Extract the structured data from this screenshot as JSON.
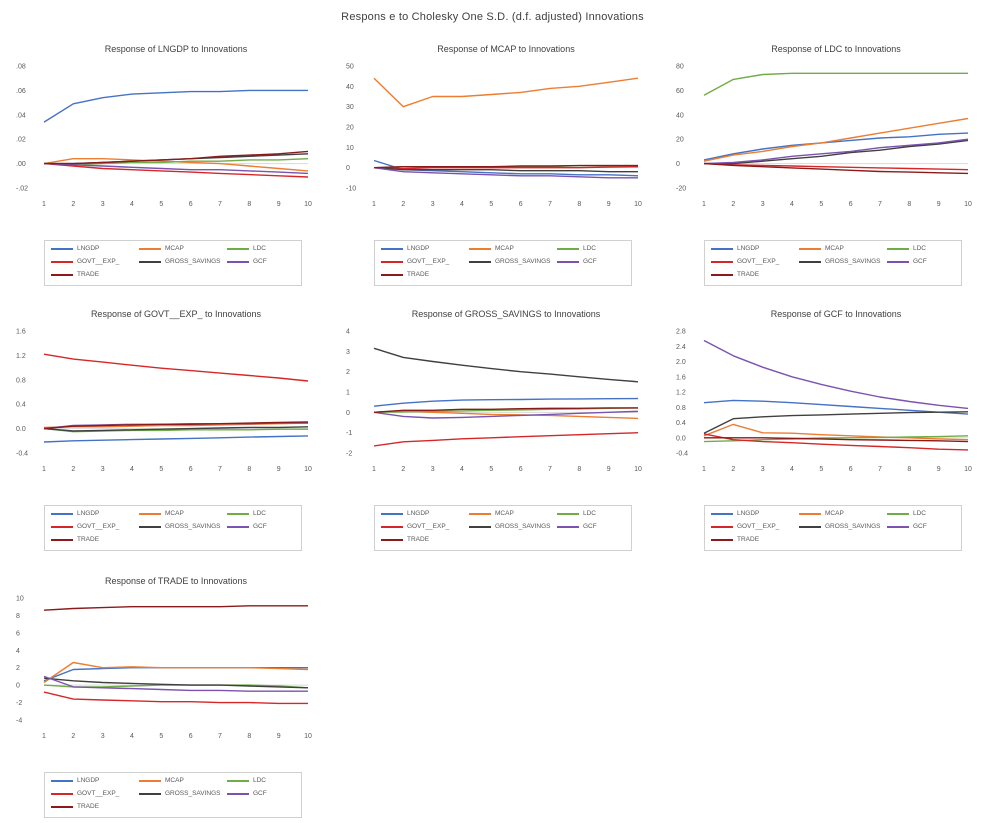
{
  "title": "Respons e to Cholesky One S.D. (d.f. adjusted) Innovations",
  "colors": {
    "LNGDP": "#4472c4",
    "MCAP": "#ed7d31",
    "LDC": "#70ad47",
    "GOVT__EXP_": "#d62728",
    "GROSS_SAVINGS": "#404040",
    "GCF": "#7b52ae",
    "TRADE": "#8b1a1a"
  },
  "legend": [
    "LNGDP",
    "MCAP",
    "LDC",
    "GOVT__EXP_",
    "GROSS_SAVINGS",
    "GCF",
    "TRADE"
  ],
  "chart_data": [
    {
      "type": "line",
      "title": "Response of LNGDP to Innovations",
      "x": [
        1,
        2,
        3,
        4,
        5,
        6,
        7,
        8,
        9,
        10
      ],
      "yticks": [
        ".08",
        ".06",
        ".04",
        ".02",
        ".00",
        "-.02"
      ],
      "ylim": [
        -0.02,
        0.08
      ],
      "series": [
        {
          "name": "LNGDP",
          "values": [
            0.034,
            0.049,
            0.054,
            0.057,
            0.058,
            0.059,
            0.059,
            0.06,
            0.06,
            0.06
          ]
        },
        {
          "name": "MCAP",
          "values": [
            0.0,
            0.004,
            0.004,
            0.003,
            0.002,
            0.001,
            0.0,
            -0.002,
            -0.004,
            -0.006
          ]
        },
        {
          "name": "LDC",
          "values": [
            0.0,
            -0.001,
            0.0,
            0.001,
            0.001,
            0.002,
            0.002,
            0.003,
            0.003,
            0.004
          ]
        },
        {
          "name": "GOVT__EXP_",
          "values": [
            0.0,
            -0.002,
            -0.004,
            -0.005,
            -0.006,
            -0.007,
            -0.008,
            -0.009,
            -0.01,
            -0.011
          ]
        },
        {
          "name": "GROSS_SAVINGS",
          "values": [
            0.0,
            0.0,
            0.001,
            0.002,
            0.003,
            0.004,
            0.005,
            0.006,
            0.007,
            0.008
          ]
        },
        {
          "name": "GCF",
          "values": [
            0.0,
            -0.001,
            -0.002,
            -0.003,
            -0.004,
            -0.005,
            -0.005,
            -0.006,
            -0.007,
            -0.008
          ]
        },
        {
          "name": "TRADE",
          "values": [
            0.0,
            0.0,
            0.001,
            0.002,
            0.003,
            0.004,
            0.006,
            0.007,
            0.008,
            0.01
          ]
        }
      ]
    },
    {
      "type": "line",
      "title": "Response of MCAP to Innovations",
      "x": [
        1,
        2,
        3,
        4,
        5,
        6,
        7,
        8,
        9,
        10
      ],
      "yticks": [
        "50",
        "40",
        "30",
        "20",
        "10",
        "0",
        "-10"
      ],
      "ylim": [
        -10,
        50
      ],
      "series": [
        {
          "name": "LNGDP",
          "values": [
            3.5,
            -1.0,
            -1.5,
            -2.0,
            -2.5,
            -3.0,
            -3.0,
            -3.5,
            -3.5,
            -4.0
          ]
        },
        {
          "name": "MCAP",
          "values": [
            44,
            30,
            35,
            35,
            36,
            37,
            39,
            40,
            42,
            44
          ]
        },
        {
          "name": "LDC",
          "values": [
            0,
            0.5,
            0.5,
            0.5,
            0.5,
            0.5,
            0.5,
            1.0,
            1.0,
            1.0
          ]
        },
        {
          "name": "GOVT__EXP_",
          "values": [
            0,
            -0.5,
            0,
            0,
            0,
            0,
            0,
            0,
            0.3,
            0.5
          ]
        },
        {
          "name": "GROSS_SAVINGS",
          "values": [
            0,
            -1.0,
            -1.0,
            -1.0,
            -1.0,
            -1.5,
            -1.5,
            -1.5,
            -2.0,
            -2.0
          ]
        },
        {
          "name": "GCF",
          "values": [
            0,
            -2.0,
            -2.5,
            -3.0,
            -3.5,
            -4.0,
            -4.0,
            -4.5,
            -5.0,
            -5.0
          ]
        },
        {
          "name": "TRADE",
          "values": [
            0,
            0.5,
            0.5,
            0.5,
            0.5,
            0.8,
            0.8,
            1.0,
            1.0,
            1.0
          ]
        }
      ]
    },
    {
      "type": "line",
      "title": "Response of LDC to Innovations",
      "x": [
        1,
        2,
        3,
        4,
        5,
        6,
        7,
        8,
        9,
        10
      ],
      "yticks": [
        "80",
        "60",
        "40",
        "20",
        "0",
        "-20"
      ],
      "ylim": [
        -20,
        80
      ],
      "series": [
        {
          "name": "LNGDP",
          "values": [
            3,
            8,
            12,
            15,
            17,
            19,
            21,
            22,
            24,
            25
          ]
        },
        {
          "name": "MCAP",
          "values": [
            2,
            7,
            10,
            14,
            17,
            21,
            25,
            29,
            33,
            37
          ]
        },
        {
          "name": "LDC",
          "values": [
            56,
            69,
            73,
            74,
            74,
            74,
            74,
            74,
            74,
            74
          ]
        },
        {
          "name": "GOVT__EXP_",
          "values": [
            0,
            -1,
            -1.5,
            -2,
            -2.5,
            -3,
            -3.5,
            -4,
            -4.5,
            -5
          ]
        },
        {
          "name": "GROSS_SAVINGS",
          "values": [
            0,
            0,
            2,
            4,
            6,
            9,
            11,
            14,
            16,
            19
          ]
        },
        {
          "name": "GCF",
          "values": [
            0,
            1,
            3,
            6,
            8,
            10,
            13,
            15,
            17,
            20
          ]
        },
        {
          "name": "TRADE",
          "values": [
            0,
            -1.5,
            -2.5,
            -3.5,
            -4.5,
            -5.5,
            -6.5,
            -7,
            -7.5,
            -8
          ]
        }
      ]
    },
    {
      "type": "line",
      "title": "Response of GOVT__EXP_ to Innovations",
      "x": [
        1,
        2,
        3,
        4,
        5,
        6,
        7,
        8,
        9,
        10
      ],
      "yticks": [
        "1.6",
        "1.2",
        "0.8",
        "0.4",
        "0.0",
        "-0.4"
      ],
      "ylim": [
        -0.4,
        1.6
      ],
      "series": [
        {
          "name": "LNGDP",
          "values": [
            -0.22,
            -0.2,
            -0.19,
            -0.18,
            -0.17,
            -0.16,
            -0.15,
            -0.14,
            -0.13,
            -0.12
          ]
        },
        {
          "name": "MCAP",
          "values": [
            0.02,
            0.03,
            0.03,
            0.04,
            0.05,
            0.05,
            0.06,
            0.07,
            0.08,
            0.09
          ]
        },
        {
          "name": "LDC",
          "values": [
            0,
            -0.05,
            -0.04,
            -0.03,
            -0.03,
            -0.02,
            -0.02,
            -0.02,
            -0.01,
            -0.01
          ]
        },
        {
          "name": "GOVT__EXP_",
          "values": [
            1.22,
            1.14,
            1.09,
            1.04,
            0.99,
            0.95,
            0.91,
            0.87,
            0.83,
            0.78
          ]
        },
        {
          "name": "GROSS_SAVINGS",
          "values": [
            0,
            -0.04,
            -0.03,
            -0.02,
            -0.01,
            0,
            0.01,
            0.02,
            0.02,
            0.03
          ]
        },
        {
          "name": "GCF",
          "values": [
            0,
            0.05,
            0.06,
            0.07,
            0.07,
            0.08,
            0.08,
            0.08,
            0.09,
            0.09
          ]
        },
        {
          "name": "TRADE",
          "values": [
            0,
            0.04,
            0.05,
            0.06,
            0.07,
            0.07,
            0.08,
            0.09,
            0.1,
            0.11
          ]
        }
      ]
    },
    {
      "type": "line",
      "title": "Response of GROSS_SAVINGS to Innovations",
      "x": [
        1,
        2,
        3,
        4,
        5,
        6,
        7,
        8,
        9,
        10
      ],
      "yticks": [
        "4",
        "3",
        "2",
        "1",
        "0",
        "-1",
        "-2"
      ],
      "ylim": [
        -2,
        4
      ],
      "series": [
        {
          "name": "LNGDP",
          "values": [
            0.3,
            0.45,
            0.55,
            0.6,
            0.62,
            0.63,
            0.65,
            0.66,
            0.67,
            0.68
          ]
        },
        {
          "name": "MCAP",
          "values": [
            0.0,
            0.05,
            0.0,
            -0.05,
            -0.1,
            -0.12,
            -0.15,
            -0.2,
            -0.25,
            -0.3
          ]
        },
        {
          "name": "LDC",
          "values": [
            0,
            0.02,
            0.05,
            0.07,
            0.1,
            0.12,
            0.15,
            0.17,
            0.2,
            0.22
          ]
        },
        {
          "name": "GOVT__EXP_",
          "values": [
            -1.65,
            -1.45,
            -1.38,
            -1.3,
            -1.25,
            -1.2,
            -1.15,
            -1.1,
            -1.05,
            -1.0
          ]
        },
        {
          "name": "GROSS_SAVINGS",
          "values": [
            3.15,
            2.7,
            2.5,
            2.32,
            2.15,
            2.0,
            1.88,
            1.75,
            1.62,
            1.5
          ]
        },
        {
          "name": "GCF",
          "values": [
            0,
            -0.2,
            -0.28,
            -0.25,
            -0.2,
            -0.15,
            -0.1,
            -0.05,
            0.0,
            0.05
          ]
        },
        {
          "name": "TRADE",
          "values": [
            0,
            0.1,
            0.1,
            0.15,
            0.15,
            0.18,
            0.2,
            0.2,
            0.22,
            0.22
          ]
        }
      ]
    },
    {
      "type": "line",
      "title": "Response of GCF to Innovations",
      "x": [
        1,
        2,
        3,
        4,
        5,
        6,
        7,
        8,
        9,
        10
      ],
      "yticks": [
        "2.8",
        "2.4",
        "2.0",
        "1.6",
        "1.2",
        "0.8",
        "0.4",
        "0.0",
        "-0.4"
      ],
      "ylim": [
        -0.4,
        2.8
      ],
      "series": [
        {
          "name": "LNGDP",
          "values": [
            0.92,
            0.98,
            0.96,
            0.92,
            0.87,
            0.82,
            0.77,
            0.72,
            0.67,
            0.62
          ]
        },
        {
          "name": "MCAP",
          "values": [
            0.05,
            0.35,
            0.13,
            0.12,
            0.08,
            0.05,
            0.02,
            0.0,
            -0.03,
            -0.05
          ]
        },
        {
          "name": "LDC",
          "values": [
            -0.1,
            -0.08,
            -0.05,
            -0.03,
            -0.01,
            0.0,
            0.01,
            0.02,
            0.03,
            0.05
          ]
        },
        {
          "name": "GOVT__EXP_",
          "values": [
            0.1,
            -0.05,
            -0.1,
            -0.13,
            -0.17,
            -0.2,
            -0.23,
            -0.26,
            -0.3,
            -0.32
          ]
        },
        {
          "name": "GROSS_SAVINGS",
          "values": [
            0.12,
            0.5,
            0.55,
            0.58,
            0.6,
            0.62,
            0.64,
            0.66,
            0.67,
            0.68
          ]
        },
        {
          "name": "GCF",
          "values": [
            2.55,
            2.15,
            1.85,
            1.6,
            1.4,
            1.22,
            1.07,
            0.95,
            0.85,
            0.77
          ]
        },
        {
          "name": "TRADE",
          "values": [
            0,
            0.0,
            0.0,
            -0.02,
            -0.03,
            -0.05,
            -0.06,
            -0.07,
            -0.08,
            -0.1
          ]
        }
      ]
    },
    {
      "type": "line",
      "title": "Response of TRADE to Innovations",
      "x": [
        1,
        2,
        3,
        4,
        5,
        6,
        7,
        8,
        9,
        10
      ],
      "yticks": [
        "10",
        "8",
        "6",
        "4",
        "2",
        "0",
        "-2",
        "-4"
      ],
      "ylim": [
        -4,
        10
      ],
      "series": [
        {
          "name": "LNGDP",
          "values": [
            0.5,
            1.8,
            1.9,
            2.0,
            2.0,
            2.0,
            2.0,
            2.0,
            2.0,
            2.0
          ]
        },
        {
          "name": "MCAP",
          "values": [
            0.3,
            2.6,
            2.0,
            2.1,
            2.0,
            2.0,
            2.0,
            2.0,
            1.9,
            1.8
          ]
        },
        {
          "name": "LDC",
          "values": [
            0,
            -0.2,
            -0.2,
            -0.1,
            0,
            0,
            0,
            0,
            -0.1,
            -0.3
          ]
        },
        {
          "name": "GOVT__EXP_",
          "values": [
            -0.8,
            -1.6,
            -1.7,
            -1.8,
            -1.9,
            -1.9,
            -2.0,
            -2.0,
            -2.1,
            -2.1
          ]
        },
        {
          "name": "GROSS_SAVINGS",
          "values": [
            0.8,
            0.5,
            0.3,
            0.2,
            0.1,
            0.0,
            0.0,
            -0.1,
            -0.2,
            -0.3
          ]
        },
        {
          "name": "GCF",
          "values": [
            1.0,
            -0.2,
            -0.3,
            -0.4,
            -0.5,
            -0.6,
            -0.6,
            -0.7,
            -0.7,
            -0.7
          ]
        },
        {
          "name": "TRADE",
          "values": [
            8.6,
            8.8,
            8.9,
            9.0,
            9.0,
            9.0,
            9.0,
            9.1,
            9.1,
            9.1
          ]
        }
      ]
    }
  ]
}
